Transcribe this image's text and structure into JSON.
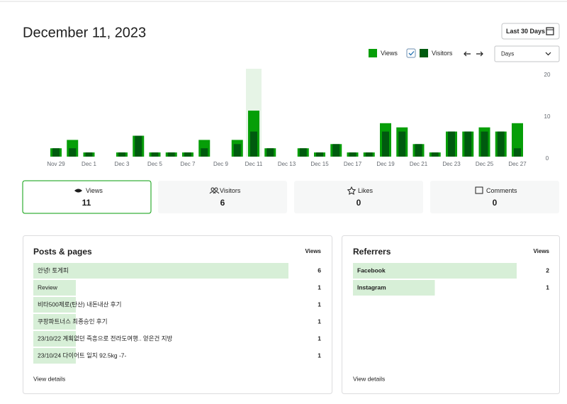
{
  "header": {
    "date": "December 11, 2023",
    "range_button": "Last 30 Days",
    "period_select": "Days"
  },
  "chart_data": {
    "type": "bar",
    "categories": [
      "Nov 29",
      null,
      "Dec 1",
      null,
      "Dec 3",
      null,
      "Dec 5",
      null,
      "Dec 7",
      null,
      "Dec 9",
      null,
      "Dec 11",
      null,
      "Dec 13",
      null,
      "Dec 15",
      null,
      "Dec 17",
      null,
      "Dec 19",
      null,
      "Dec 21",
      null,
      "Dec 23",
      null,
      "Dec 25",
      null,
      "Dec 27"
    ],
    "series": [
      {
        "name": "Views",
        "color": "#069e08",
        "values": [
          2,
          4,
          1,
          0,
          1,
          5,
          1,
          1,
          1,
          4,
          0,
          4,
          11,
          2,
          0,
          2,
          1,
          3,
          1,
          1,
          8,
          7,
          3,
          1,
          6,
          6,
          7,
          6,
          8
        ]
      },
      {
        "name": "Visitors",
        "color": "#005a0f",
        "values": [
          2,
          2,
          1,
          0,
          1,
          5,
          1,
          1,
          1,
          2,
          0,
          3,
          6,
          2,
          0,
          2,
          1,
          3,
          1,
          1,
          6,
          6,
          3,
          1,
          6,
          6,
          6,
          6,
          2
        ]
      }
    ],
    "ylim": [
      0,
      20
    ],
    "yticks": [
      0,
      10,
      20
    ],
    "selected_index": 12,
    "highlight_color": "#e6f4e6"
  },
  "stats": [
    {
      "label": "Views",
      "value": 11
    },
    {
      "label": "Visitors",
      "value": 6
    },
    {
      "label": "Likes",
      "value": 0
    },
    {
      "label": "Comments",
      "value": 0
    }
  ],
  "posts": {
    "title": "Posts & pages",
    "column": "Views",
    "footer": "View details",
    "rows": [
      {
        "label": "안녕! 토게피",
        "value": 6
      },
      {
        "label": "Review",
        "value": 1
      },
      {
        "label": "비타500제로(탄산) 내돈내산 후기",
        "value": 1
      },
      {
        "label": "쿠팡파트너스 최종승인 후기",
        "value": 1
      },
      {
        "label": "23/10/22 계획없던 즉흥으로 전라도여행.. 얻은건 지방",
        "value": 1
      },
      {
        "label": "23/10/24 다이어트 일지 92.5kg -7-",
        "value": 1
      }
    ]
  },
  "referrers": {
    "title": "Referrers",
    "column": "Views",
    "footer": "View details",
    "rows": [
      {
        "label": "Facebook",
        "value": 2
      },
      {
        "label": "Instagram",
        "value": 1
      }
    ]
  }
}
